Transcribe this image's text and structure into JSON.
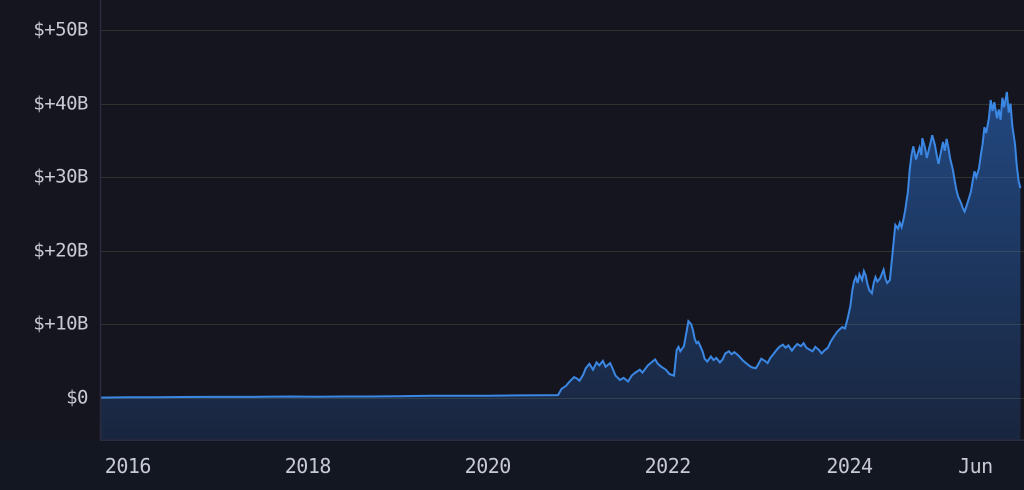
{
  "chart_data": {
    "type": "area",
    "grid": true,
    "legend": false,
    "xlim": [
      2015.69,
      2025.96
    ],
    "ylim": [
      -5.9,
      54.1
    ],
    "y_ticks": [
      {
        "label": "$+50B",
        "value": 50
      },
      {
        "label": "$+40B",
        "value": 40
      },
      {
        "label": "$+30B",
        "value": 30
      },
      {
        "label": "$+20B",
        "value": 20
      },
      {
        "label": "$+10B",
        "value": 10
      },
      {
        "label": "$0",
        "value": 0
      }
    ],
    "x_ticks": [
      {
        "label": "2016",
        "t": 2016.0
      },
      {
        "label": "2018",
        "t": 2018.0
      },
      {
        "label": "2020",
        "t": 2020.0
      },
      {
        "label": "2022",
        "t": 2022.0
      },
      {
        "label": "2024",
        "t": 2024.02
      },
      {
        "label": "Jun",
        "t": 2025.42
      }
    ],
    "colors": {
      "background": "#15151f",
      "axis_band_bg": "#131722",
      "grid": "#30332b",
      "axis": "#2c2b40",
      "tick_label": "#c8c9d2",
      "line": "#3b87e4",
      "fill_top": "rgba(46,122,224,0.50)",
      "fill_bottom": "rgba(46,122,224,0.16)"
    },
    "series": [
      {
        "points": [
          [
            2015.69,
            0.0
          ],
          [
            2016.0,
            0.05
          ],
          [
            2016.3,
            0.05
          ],
          [
            2016.6,
            0.08
          ],
          [
            2016.9,
            0.1
          ],
          [
            2017.2,
            0.1
          ],
          [
            2017.5,
            0.12
          ],
          [
            2017.8,
            0.15
          ],
          [
            2018.1,
            0.12
          ],
          [
            2018.4,
            0.15
          ],
          [
            2018.7,
            0.15
          ],
          [
            2019.0,
            0.18
          ],
          [
            2019.36,
            0.25
          ],
          [
            2019.7,
            0.25
          ],
          [
            2020.0,
            0.25
          ],
          [
            2020.36,
            0.3
          ],
          [
            2020.63,
            0.32
          ],
          [
            2020.78,
            0.35
          ],
          [
            2020.82,
            1.2
          ],
          [
            2020.87,
            1.6
          ],
          [
            2020.91,
            2.2
          ],
          [
            2020.96,
            2.8
          ],
          [
            2020.99,
            2.6
          ],
          [
            2021.02,
            2.3
          ],
          [
            2021.06,
            3.1
          ],
          [
            2021.09,
            4.0
          ],
          [
            2021.13,
            4.6
          ],
          [
            2021.17,
            3.8
          ],
          [
            2021.21,
            4.8
          ],
          [
            2021.24,
            4.4
          ],
          [
            2021.28,
            5.0
          ],
          [
            2021.31,
            4.2
          ],
          [
            2021.36,
            4.7
          ],
          [
            2021.39,
            3.9
          ],
          [
            2021.42,
            3.0
          ],
          [
            2021.47,
            2.4
          ],
          [
            2021.51,
            2.7
          ],
          [
            2021.56,
            2.2
          ],
          [
            2021.6,
            3.0
          ],
          [
            2021.64,
            3.4
          ],
          [
            2021.69,
            3.8
          ],
          [
            2021.72,
            3.4
          ],
          [
            2021.78,
            4.4
          ],
          [
            2021.82,
            4.8
          ],
          [
            2021.86,
            5.2
          ],
          [
            2021.89,
            4.6
          ],
          [
            2021.93,
            4.2
          ],
          [
            2021.98,
            3.8
          ],
          [
            2022.02,
            3.2
          ],
          [
            2022.07,
            3.0
          ],
          [
            2022.1,
            6.5
          ],
          [
            2022.12,
            6.9
          ],
          [
            2022.14,
            6.3
          ],
          [
            2022.18,
            7.0
          ],
          [
            2022.21,
            9.0
          ],
          [
            2022.23,
            10.4
          ],
          [
            2022.26,
            10.0
          ],
          [
            2022.28,
            9.2
          ],
          [
            2022.3,
            8.0
          ],
          [
            2022.32,
            7.4
          ],
          [
            2022.34,
            7.6
          ],
          [
            2022.37,
            6.8
          ],
          [
            2022.39,
            6.2
          ],
          [
            2022.41,
            5.3
          ],
          [
            2022.44,
            4.9
          ],
          [
            2022.48,
            5.6
          ],
          [
            2022.51,
            5.1
          ],
          [
            2022.54,
            5.4
          ],
          [
            2022.58,
            4.8
          ],
          [
            2022.61,
            5.2
          ],
          [
            2022.64,
            6.0
          ],
          [
            2022.68,
            6.3
          ],
          [
            2022.71,
            5.9
          ],
          [
            2022.74,
            6.2
          ],
          [
            2022.78,
            5.8
          ],
          [
            2022.81,
            5.4
          ],
          [
            2022.84,
            5.0
          ],
          [
            2022.88,
            4.6
          ],
          [
            2022.91,
            4.3
          ],
          [
            2022.94,
            4.1
          ],
          [
            2022.98,
            4.0
          ],
          [
            2023.01,
            4.6
          ],
          [
            2023.04,
            5.3
          ],
          [
            2023.08,
            5.0
          ],
          [
            2023.11,
            4.7
          ],
          [
            2023.14,
            5.4
          ],
          [
            2023.18,
            6.0
          ],
          [
            2023.21,
            6.5
          ],
          [
            2023.24,
            6.9
          ],
          [
            2023.28,
            7.2
          ],
          [
            2023.31,
            6.8
          ],
          [
            2023.34,
            7.1
          ],
          [
            2023.38,
            6.4
          ],
          [
            2023.41,
            6.9
          ],
          [
            2023.44,
            7.3
          ],
          [
            2023.48,
            7.0
          ],
          [
            2023.51,
            7.4
          ],
          [
            2023.54,
            6.8
          ],
          [
            2023.58,
            6.5
          ],
          [
            2023.61,
            6.3
          ],
          [
            2023.64,
            6.9
          ],
          [
            2023.68,
            6.5
          ],
          [
            2023.71,
            6.0
          ],
          [
            2023.74,
            6.4
          ],
          [
            2023.78,
            6.8
          ],
          [
            2023.81,
            7.6
          ],
          [
            2023.84,
            8.2
          ],
          [
            2023.88,
            8.9
          ],
          [
            2023.91,
            9.3
          ],
          [
            2023.94,
            9.6
          ],
          [
            2023.97,
            9.4
          ],
          [
            2024.0,
            10.8
          ],
          [
            2024.03,
            12.5
          ],
          [
            2024.05,
            14.5
          ],
          [
            2024.07,
            15.8
          ],
          [
            2024.09,
            16.4
          ],
          [
            2024.11,
            15.6
          ],
          [
            2024.13,
            16.8
          ],
          [
            2024.16,
            16.0
          ],
          [
            2024.18,
            17.2
          ],
          [
            2024.2,
            16.6
          ],
          [
            2024.22,
            15.4
          ],
          [
            2024.24,
            14.6
          ],
          [
            2024.27,
            14.2
          ],
          [
            2024.29,
            15.6
          ],
          [
            2024.31,
            16.4
          ],
          [
            2024.33,
            15.8
          ],
          [
            2024.36,
            16.2
          ],
          [
            2024.38,
            16.8
          ],
          [
            2024.4,
            17.4
          ],
          [
            2024.42,
            16.2
          ],
          [
            2024.44,
            15.6
          ],
          [
            2024.47,
            16.0
          ],
          [
            2024.49,
            18.5
          ],
          [
            2024.51,
            21.0
          ],
          [
            2024.53,
            23.5
          ],
          [
            2024.56,
            23.0
          ],
          [
            2024.58,
            23.8
          ],
          [
            2024.6,
            23.2
          ],
          [
            2024.62,
            24.2
          ],
          [
            2024.64,
            25.5
          ],
          [
            2024.67,
            28.0
          ],
          [
            2024.69,
            31.0
          ],
          [
            2024.71,
            33.0
          ],
          [
            2024.73,
            34.2
          ],
          [
            2024.76,
            32.4
          ],
          [
            2024.78,
            33.2
          ],
          [
            2024.8,
            34.0
          ],
          [
            2024.82,
            33.0
          ],
          [
            2024.83,
            35.3
          ],
          [
            2024.86,
            34.0
          ],
          [
            2024.88,
            32.6
          ],
          [
            2024.9,
            33.6
          ],
          [
            2024.92,
            34.6
          ],
          [
            2024.94,
            35.7
          ],
          [
            2024.97,
            34.4
          ],
          [
            2024.99,
            33.0
          ],
          [
            2025.01,
            31.8
          ],
          [
            2025.03,
            33.0
          ],
          [
            2025.06,
            34.8
          ],
          [
            2025.08,
            33.6
          ],
          [
            2025.1,
            35.2
          ],
          [
            2025.12,
            34.0
          ],
          [
            2025.14,
            32.5
          ],
          [
            2025.17,
            31.0
          ],
          [
            2025.19,
            29.5
          ],
          [
            2025.21,
            28.2
          ],
          [
            2025.23,
            27.3
          ],
          [
            2025.26,
            26.5
          ],
          [
            2025.28,
            25.8
          ],
          [
            2025.3,
            25.3
          ],
          [
            2025.32,
            26.0
          ],
          [
            2025.34,
            26.8
          ],
          [
            2025.37,
            28.0
          ],
          [
            2025.39,
            29.5
          ],
          [
            2025.41,
            30.8
          ],
          [
            2025.43,
            30.0
          ],
          [
            2025.46,
            31.2
          ],
          [
            2025.48,
            33.0
          ],
          [
            2025.5,
            34.5
          ],
          [
            2025.52,
            36.8
          ],
          [
            2025.54,
            36.0
          ],
          [
            2025.57,
            38.0
          ],
          [
            2025.59,
            40.5
          ],
          [
            2025.61,
            39.0
          ],
          [
            2025.63,
            40.2
          ],
          [
            2025.66,
            38.0
          ],
          [
            2025.68,
            39.2
          ],
          [
            2025.7,
            37.8
          ],
          [
            2025.72,
            40.8
          ],
          [
            2025.74,
            39.5
          ],
          [
            2025.77,
            41.6
          ],
          [
            2025.79,
            38.8
          ],
          [
            2025.81,
            40.0
          ],
          [
            2025.83,
            37.0
          ],
          [
            2025.86,
            34.5
          ],
          [
            2025.88,
            31.5
          ],
          [
            2025.9,
            29.5
          ],
          [
            2025.92,
            28.5
          ]
        ]
      }
    ]
  }
}
